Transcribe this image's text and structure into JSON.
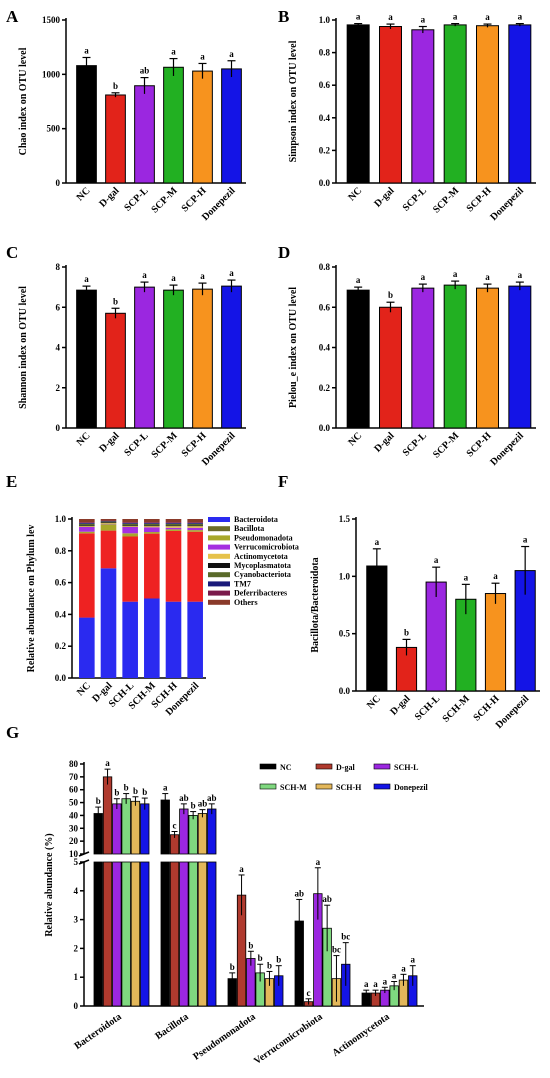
{
  "colors": {
    "NC": "#000000",
    "D-gal": "#e2231a",
    "SCP-L": "#9b27e0",
    "SCP-M": "#22b022",
    "SCP-H": "#f7931e",
    "Donepezil": "#1414e6",
    "G_D-gal": "#b03a2e",
    "G_SCH-M": "#7fd87f",
    "G_SCH-H": "#e3b75a"
  },
  "chart_data": [
    {
      "panel": "A",
      "type": "bar",
      "ylabel": "Chao index on OTU level",
      "categories": [
        "NC",
        "D-gal",
        "SCP-L",
        "SCP-M",
        "SCP-H",
        "Donepezil"
      ],
      "values": [
        1080,
        810,
        895,
        1065,
        1030,
        1050
      ],
      "errors": [
        75,
        20,
        75,
        80,
        70,
        75
      ],
      "sig": [
        "a",
        "b",
        "ab",
        "a",
        "a",
        "a"
      ],
      "ylim": [
        0,
        1500
      ],
      "yticks": [
        "0",
        "500",
        "1000",
        "1500"
      ]
    },
    {
      "panel": "B",
      "type": "bar",
      "ylabel": "Simpson index on OTU level",
      "categories": [
        "NC",
        "D-gal",
        "SCP-L",
        "SCP-M",
        "SCP-H",
        "Donepezil"
      ],
      "values": [
        0.97,
        0.96,
        0.94,
        0.97,
        0.965,
        0.97
      ],
      "errors": [
        0.008,
        0.015,
        0.02,
        0.008,
        0.01,
        0.008
      ],
      "sig": [
        "a",
        "a",
        "a",
        "a",
        "a",
        "a"
      ],
      "ylim": [
        0,
        1.0
      ],
      "yticks": [
        "0.0",
        "0.2",
        "0.4",
        "0.6",
        "0.8",
        "1.0"
      ]
    },
    {
      "panel": "C",
      "type": "bar",
      "ylabel": "Shannon index on OTU level",
      "categories": [
        "NC",
        "D-gal",
        "SCP-L",
        "SCP-M",
        "SCP-H",
        "Donepezil"
      ],
      "values": [
        6.85,
        5.7,
        7.0,
        6.85,
        6.9,
        7.05
      ],
      "errors": [
        0.2,
        0.25,
        0.25,
        0.25,
        0.3,
        0.3
      ],
      "sig": [
        "a",
        "b",
        "a",
        "a",
        "a",
        "a"
      ],
      "ylim": [
        0,
        8
      ],
      "yticks": [
        "0",
        "2",
        "4",
        "6",
        "8"
      ]
    },
    {
      "panel": "D",
      "type": "bar",
      "ylabel": "Pielou_e index on OTU level",
      "categories": [
        "NC",
        "D-gal",
        "SCP-L",
        "SCP-M",
        "SCP-H",
        "Donepezil"
      ],
      "values": [
        0.685,
        0.6,
        0.695,
        0.71,
        0.695,
        0.705
      ],
      "errors": [
        0.015,
        0.025,
        0.02,
        0.02,
        0.02,
        0.02
      ],
      "sig": [
        "a",
        "b",
        "a",
        "a",
        "a",
        "a"
      ],
      "ylim": [
        0,
        0.8
      ],
      "yticks": [
        "0.0",
        "0.2",
        "0.4",
        "0.6",
        "0.8"
      ]
    },
    {
      "panel": "E",
      "type": "bar",
      "stacked": true,
      "ylabel": "Relative abundance on Phylum lev",
      "categories": [
        "NC",
        "D-gal",
        "SCH-L",
        "SCH-M",
        "SCH-H",
        "Donepezil"
      ],
      "series": [
        {
          "name": "Bacteroidota",
          "color": "#2a2af0",
          "values": [
            0.38,
            0.69,
            0.48,
            0.5,
            0.48,
            0.48
          ]
        },
        {
          "name": "Bacillota",
          "color": "#6b6b2a",
          "values": [
            0.05,
            0.01,
            0.03,
            0.04,
            0.03,
            0.03
          ]
        },
        {
          "name": "Pseudomonadota",
          "color": "#a8a82a",
          "values": [
            0.01,
            0.04,
            0.02,
            0.01,
            0.01,
            0.01
          ]
        },
        {
          "name": "Verrucomicrobiota",
          "color": "#a530e0",
          "values": [
            0.03,
            0.002,
            0.04,
            0.03,
            0.01,
            0.015
          ]
        },
        {
          "name": "Actinomycetota",
          "color": "#e6c24a",
          "values": [
            0.005,
            0.005,
            0.005,
            0.007,
            0.01,
            0.01
          ]
        },
        {
          "name": "Mycoplasmatota",
          "color": "#111111",
          "values": [
            0.005,
            0.005,
            0.005,
            0.005,
            0.005,
            0.005
          ]
        },
        {
          "name": "Cyanobacteriota",
          "color": "#5a6a2a",
          "values": [
            0.01,
            0.005,
            0.01,
            0.01,
            0.01,
            0.01
          ]
        },
        {
          "name": "TM7",
          "color": "#1a1a7a",
          "values": [
            0.005,
            0.003,
            0.005,
            0.005,
            0.005,
            0.005
          ]
        },
        {
          "name": "Deferribacteres",
          "color": "#7a1a4a",
          "values": [
            0.005,
            0.003,
            0.005,
            0.005,
            0.005,
            0.005
          ]
        },
        {
          "name": "Others",
          "color": "#8a3a2a",
          "values": [
            0.02,
            0.01,
            0.02,
            0.02,
            0.02,
            0.02
          ]
        }
      ],
      "red_fill": "#ee2222",
      "ylim": [
        0,
        1.0
      ],
      "yticks": [
        "0.0",
        "0.2",
        "0.4",
        "0.6",
        "0.8",
        "1.0"
      ]
    },
    {
      "panel": "F",
      "type": "bar",
      "ylabel": "Bacillota/Bacteroidota",
      "categories": [
        "NC",
        "D-gal",
        "SCH-L",
        "SCH-M",
        "SCH-H",
        "Donepezil"
      ],
      "values": [
        1.09,
        0.38,
        0.95,
        0.8,
        0.85,
        1.05
      ],
      "errors": [
        0.15,
        0.07,
        0.13,
        0.13,
        0.09,
        0.21
      ],
      "sig": [
        "a",
        "b",
        "a",
        "a",
        "a",
        "a"
      ],
      "ylim": [
        0,
        1.5
      ],
      "yticks": [
        "0.0",
        "0.5",
        "1.0",
        "1.5"
      ]
    },
    {
      "panel": "G",
      "type": "bar",
      "grouped": true,
      "ylabel": "Relative abundance (%)",
      "groups": [
        "Bacteroidota",
        "Bacillota",
        "Pseudomonadota",
        "Verrucomicrobiota",
        "Actinomycetota"
      ],
      "series_names": [
        "NC",
        "D-gal",
        "SCH-L",
        "SCH-M",
        "SCH-H",
        "Donepezil"
      ],
      "values": [
        [
          41.5,
          70,
          49,
          53,
          51,
          49
        ],
        [
          52,
          25,
          45,
          40,
          41.5,
          45
        ],
        [
          0.95,
          3.85,
          1.65,
          1.15,
          0.95,
          1.05
        ],
        [
          2.95,
          0.15,
          3.9,
          2.7,
          0.95,
          1.45
        ],
        [
          0.45,
          0.45,
          0.55,
          0.7,
          0.9,
          1.05
        ]
      ],
      "errors": [
        [
          5,
          6,
          4,
          4,
          3.5,
          4.5
        ],
        [
          5,
          2.5,
          4,
          3,
          3,
          4
        ],
        [
          0.2,
          0.7,
          0.25,
          0.3,
          0.25,
          0.35
        ],
        [
          0.75,
          0.1,
          0.9,
          0.8,
          0.8,
          0.75
        ],
        [
          0.1,
          0.1,
          0.1,
          0.15,
          0.2,
          0.35
        ]
      ],
      "sig": [
        [
          "b",
          "a",
          "b",
          "b",
          "b",
          "b"
        ],
        [
          "a",
          "c",
          "ab",
          "b",
          "ab",
          "ab"
        ],
        [
          "b",
          "a",
          "b",
          "b",
          "b",
          "b"
        ],
        [
          "ab",
          "c",
          "a",
          "ab",
          "bc",
          "bc"
        ],
        [
          "a",
          "a",
          "a",
          "a",
          "a",
          "a"
        ]
      ],
      "ylim_upper": [
        10,
        80
      ],
      "yticks_upper": [
        "10",
        "20",
        "30",
        "40",
        "50",
        "60",
        "70",
        "80"
      ],
      "ylim_lower": [
        0,
        5
      ],
      "yticks_lower": [
        "0",
        "1",
        "2",
        "3",
        "4",
        "5"
      ]
    }
  ]
}
